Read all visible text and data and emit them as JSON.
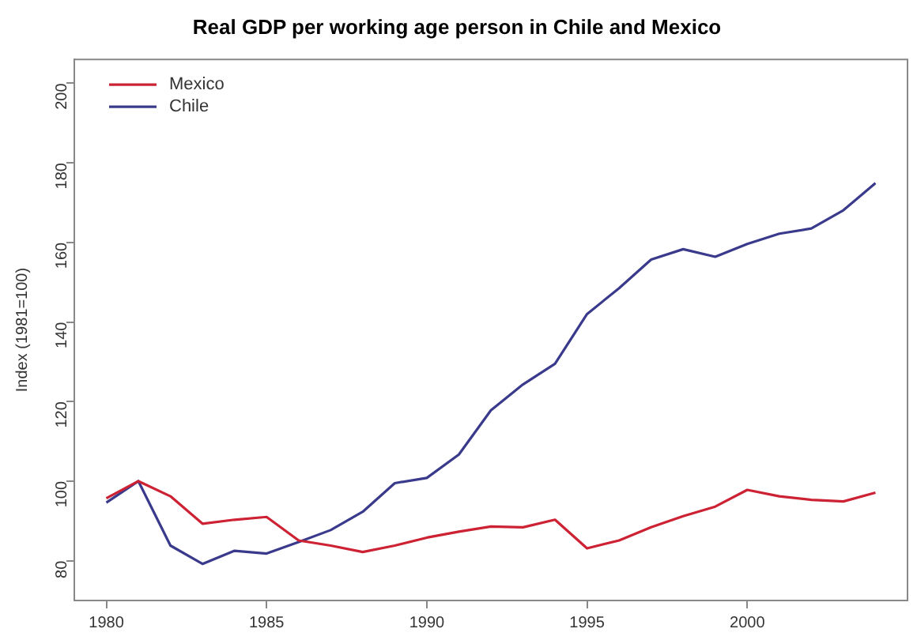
{
  "chart_data": {
    "type": "line",
    "title": "Real GDP per working age person in Chile and Mexico",
    "ylabel": "Index (1981=100)",
    "x": [
      1980,
      1981,
      1982,
      1983,
      1984,
      1985,
      1986,
      1987,
      1988,
      1989,
      1990,
      1991,
      1992,
      1993,
      1994,
      1995,
      1996,
      1997,
      1998,
      1999,
      2000,
      2001,
      2002,
      2003,
      2004
    ],
    "series": [
      {
        "name": "Mexico",
        "color": "#cc2233",
        "values": [
          95.7,
          100,
          96.2,
          89.3,
          90.3,
          91,
          85.1,
          83.8,
          82.2,
          83.8,
          85.8,
          87.3,
          88.6,
          88.4,
          90.3,
          83.1,
          85.1,
          88.4,
          91.2,
          93.6,
          97.8,
          96.2,
          95.3,
          94.9,
          97.1
        ]
      },
      {
        "name": "Chile",
        "color": "#3a3a8c",
        "values": [
          94.6,
          100,
          83.8,
          79.2,
          82.5,
          81.8,
          84.7,
          87.7,
          92.3,
          99.5,
          100.8,
          106.7,
          117.8,
          124.3,
          129.5,
          142,
          148.5,
          155.7,
          158.3,
          156.4,
          159.6,
          162.2,
          163.5,
          168.1,
          174.9
        ]
      }
    ],
    "xlim": [
      1979,
      2005
    ],
    "xticks": [
      1980,
      1985,
      1990,
      1995,
      2000
    ],
    "ylim": [
      70,
      206
    ],
    "yticks": [
      80,
      100,
      120,
      140,
      160,
      180,
      200
    ],
    "grid": false,
    "legend": "top left",
    "marker": "none",
    "line_style": "solid"
  }
}
